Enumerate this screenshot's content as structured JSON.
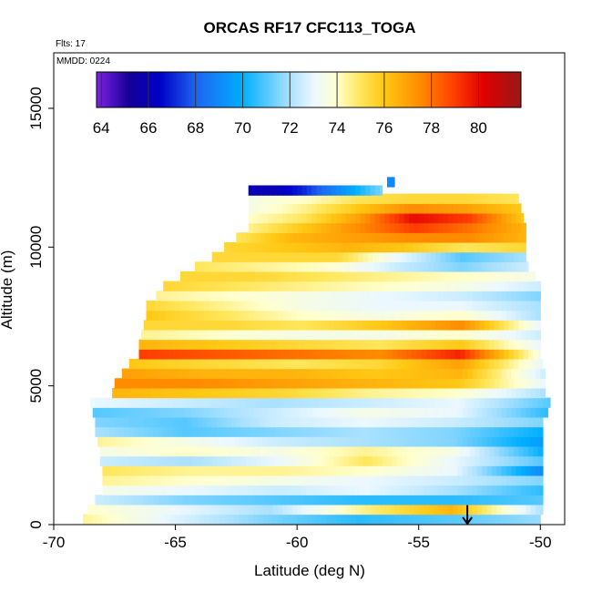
{
  "chart_data": {
    "type": "heatmap",
    "title": "ORCAS RF17 CFC113_TOGA",
    "flights_note": "Flts: 17",
    "date_note": "MMDD: 0224",
    "xlabel": "Latitude (deg N)",
    "ylabel": "Altitude (m)",
    "xlim": [
      -70,
      -49
    ],
    "ylim": [
      0,
      17000
    ],
    "x_ticks": [
      -70,
      -65,
      -60,
      -55,
      -50
    ],
    "x_tick_labels": [
      "-70",
      "-65",
      "-60",
      "-55",
      "-50"
    ],
    "y_ticks": [
      0,
      5000,
      10000,
      15000
    ],
    "y_tick_labels": [
      "0",
      "5000",
      "10000",
      "15000"
    ],
    "colorbar": {
      "range": [
        63.8,
        81.8
      ],
      "ticks": [
        64,
        66,
        68,
        70,
        72,
        74,
        76,
        78,
        80
      ],
      "tick_labels": [
        "64",
        "66",
        "68",
        "70",
        "72",
        "74",
        "76",
        "78",
        "80"
      ]
    },
    "annotation": {
      "type": "arrow",
      "latitude": -53,
      "altitude_top": 700,
      "altitude_bottom": 0
    },
    "layers": [
      {
        "alt": 200,
        "lat_min": -68.8,
        "lat_max": -50.0,
        "values": [
          74.5,
          72.8,
          71.5,
          70.5,
          71.0,
          71.8
        ]
      },
      {
        "alt": 550,
        "lat_min": -68.6,
        "lat_max": -49.9,
        "values": [
          74.0,
          73.0,
          72.0,
          74.5,
          76.5,
          72.0
        ]
      },
      {
        "alt": 900,
        "lat_min": -68.3,
        "lat_max": -49.9,
        "values": [
          72.5,
          71.5,
          71.0,
          70.5,
          70.5,
          71.0
        ]
      },
      {
        "alt": 1250,
        "lat_min": -68.0,
        "lat_max": -49.9,
        "values": [
          73.5,
          73.0,
          72.5,
          73.0,
          72.0,
          70.5
        ]
      },
      {
        "alt": 1600,
        "lat_min": -68.0,
        "lat_max": -49.9,
        "values": [
          74.5,
          74.0,
          73.5,
          73.0,
          72.5,
          71.5
        ]
      },
      {
        "alt": 1950,
        "lat_min": -68.0,
        "lat_max": -49.9,
        "values": [
          75.0,
          74.5,
          74.5,
          74.0,
          73.0,
          69.0
        ]
      },
      {
        "alt": 2300,
        "lat_min": -68.1,
        "lat_max": -49.9,
        "values": [
          72.5,
          72.0,
          73.0,
          75.0,
          73.0,
          71.0
        ]
      },
      {
        "alt": 2650,
        "lat_min": -68.1,
        "lat_max": -49.9,
        "values": [
          73.5,
          74.0,
          73.5,
          74.5,
          73.5,
          70.0
        ]
      },
      {
        "alt": 3000,
        "lat_min": -68.2,
        "lat_max": -49.9,
        "values": [
          74.5,
          73.5,
          72.5,
          72.0,
          71.5,
          69.5
        ]
      },
      {
        "alt": 3350,
        "lat_min": -68.3,
        "lat_max": -49.9,
        "values": [
          72.0,
          71.0,
          71.5,
          72.0,
          71.5,
          70.0
        ]
      },
      {
        "alt": 3700,
        "lat_min": -68.3,
        "lat_max": -49.9,
        "values": [
          71.5,
          71.0,
          72.5,
          73.0,
          72.5,
          71.5
        ]
      },
      {
        "alt": 4050,
        "lat_min": -68.4,
        "lat_max": -49.7,
        "values": [
          71.0,
          71.5,
          72.5,
          73.5,
          73.0,
          70.5
        ]
      },
      {
        "alt": 4400,
        "lat_min": -68.5,
        "lat_max": -49.6,
        "values": [
          73.0,
          72.5,
          72.0,
          72.5,
          73.0,
          71.0
        ]
      },
      {
        "alt": 4750,
        "lat_min": -67.6,
        "lat_max": -49.8,
        "values": [
          76.5,
          76.0,
          75.5,
          74.5,
          74.0,
          72.0
        ]
      },
      {
        "alt": 5100,
        "lat_min": -67.5,
        "lat_max": -49.8,
        "values": [
          77.5,
          77.5,
          77.0,
          76.5,
          76.0,
          73.0
        ]
      },
      {
        "alt": 5450,
        "lat_min": -67.2,
        "lat_max": -49.8,
        "values": [
          77.0,
          76.5,
          76.5,
          76.0,
          76.5,
          72.5
        ]
      },
      {
        "alt": 5800,
        "lat_min": -66.9,
        "lat_max": -49.9,
        "values": [
          76.0,
          75.5,
          75.0,
          75.5,
          77.0,
          73.0
        ]
      },
      {
        "alt": 6150,
        "lat_min": -66.5,
        "lat_max": -50.0,
        "values": [
          79.0,
          78.5,
          78.0,
          77.5,
          79.5,
          73.5
        ]
      },
      {
        "alt": 6500,
        "lat_min": -66.5,
        "lat_max": -50.0,
        "values": [
          76.5,
          76.0,
          75.5,
          75.0,
          76.0,
          73.0
        ]
      },
      {
        "alt": 6850,
        "lat_min": -66.4,
        "lat_max": -50.0,
        "values": [
          74.5,
          74.0,
          73.5,
          73.5,
          74.0,
          72.5
        ]
      },
      {
        "alt": 7200,
        "lat_min": -66.3,
        "lat_max": -50.0,
        "values": [
          75.5,
          75.5,
          75.0,
          76.0,
          77.5,
          73.0
        ]
      },
      {
        "alt": 7550,
        "lat_min": -66.2,
        "lat_max": -50.0,
        "values": [
          76.0,
          75.0,
          74.0,
          73.5,
          74.0,
          72.0
        ]
      },
      {
        "alt": 7900,
        "lat_min": -66.2,
        "lat_max": -50.0,
        "values": [
          75.5,
          74.5,
          73.5,
          73.0,
          73.0,
          72.0
        ]
      },
      {
        "alt": 8250,
        "lat_min": -65.8,
        "lat_max": -50.0,
        "values": [
          74.5,
          74.0,
          73.5,
          73.0,
          72.5,
          71.5
        ]
      },
      {
        "alt": 8600,
        "lat_min": -65.5,
        "lat_max": -50.0,
        "values": [
          75.5,
          75.0,
          74.5,
          74.0,
          73.5,
          72.5
        ]
      },
      {
        "alt": 8950,
        "lat_min": -64.8,
        "lat_max": -50.2,
        "values": [
          75.5,
          75.5,
          75.0,
          74.5,
          74.0,
          73.5
        ]
      },
      {
        "alt": 9300,
        "lat_min": -64.2,
        "lat_max": -50.5,
        "values": [
          75.0,
          74.5,
          74.0,
          72.5,
          71.5,
          72.5
        ]
      },
      {
        "alt": 9650,
        "lat_min": -63.5,
        "lat_max": -50.6,
        "values": [
          75.5,
          75.5,
          75.5,
          73.0,
          71.0,
          72.0
        ]
      },
      {
        "alt": 10000,
        "lat_min": -63.0,
        "lat_max": -50.6,
        "values": [
          75.5,
          76.0,
          76.5,
          76.0,
          75.0,
          75.5
        ]
      },
      {
        "alt": 10350,
        "lat_min": -62.5,
        "lat_max": -50.6,
        "values": [
          75.0,
          76.5,
          77.0,
          77.5,
          77.5,
          76.5
        ]
      },
      {
        "alt": 10700,
        "lat_min": -62.0,
        "lat_max": -50.6,
        "values": [
          74.5,
          76.0,
          77.5,
          79.0,
          78.0,
          76.5
        ]
      },
      {
        "alt": 11050,
        "lat_min": -62.0,
        "lat_max": -50.7,
        "values": [
          74.0,
          75.0,
          77.0,
          80.0,
          79.0,
          76.0
        ]
      },
      {
        "alt": 11400,
        "lat_min": -62.0,
        "lat_max": -50.8,
        "values": [
          73.5,
          74.5,
          76.0,
          77.5,
          77.0,
          76.0
        ]
      },
      {
        "alt": 11750,
        "lat_min": -62.0,
        "lat_max": -50.9,
        "values": [
          73.5,
          74.0,
          75.0,
          75.5,
          75.5,
          75.0
        ]
      },
      {
        "alt": 12050,
        "lat_min": -62.0,
        "lat_max": -56.5,
        "values": [
          66.0,
          66.0,
          67.0,
          68.5,
          70.0,
          71.5
        ]
      },
      {
        "alt": 12350,
        "lat_min": -56.3,
        "lat_max": -56.0,
        "values": [
          69.0,
          69.0,
          69.0,
          69.0,
          69.0,
          69.0
        ]
      }
    ]
  }
}
